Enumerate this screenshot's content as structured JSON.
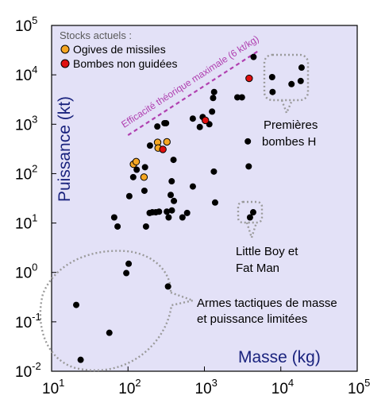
{
  "chart_data": {
    "type": "scatter",
    "xlabel": "Masse (kg)",
    "ylabel": "Puissance (kt)",
    "x_scale": "log",
    "y_scale": "log",
    "xlim": [
      10,
      100000
    ],
    "ylim": [
      0.01,
      100000
    ],
    "x_ticks": [
      {
        "value": 10,
        "base": "10",
        "exp": "1"
      },
      {
        "value": 100,
        "base": "10",
        "exp": "2"
      },
      {
        "value": 1000,
        "base": "10",
        "exp": "3"
      },
      {
        "value": 10000,
        "base": "10",
        "exp": "4"
      },
      {
        "value": 100000,
        "base": "10",
        "exp": "5"
      }
    ],
    "y_ticks": [
      {
        "value": 0.01,
        "base": "10",
        "exp": "-2"
      },
      {
        "value": 0.1,
        "base": "10",
        "exp": "-1"
      },
      {
        "value": 1,
        "base": "10",
        "exp": "0"
      },
      {
        "value": 10,
        "base": "10",
        "exp": "1"
      },
      {
        "value": 100,
        "base": "10",
        "exp": "2"
      },
      {
        "value": 1000,
        "base": "10",
        "exp": "3"
      },
      {
        "value": 10000,
        "base": "10",
        "exp": "4"
      },
      {
        "value": 100000,
        "base": "10",
        "exp": "5"
      }
    ],
    "grid": false,
    "background": "#e3e1f7",
    "legend": {
      "title": "Stocks actuels :",
      "placement": "top-left",
      "entries": [
        {
          "label": "Ogives de missiles",
          "color": "#f5a623"
        },
        {
          "label": "Bombes non guidées",
          "color": "#e01010"
        }
      ]
    },
    "limit_line": {
      "label": "Efficacité théorique maximale (6 kt/kg)",
      "color": "#b040b0",
      "kt_per_kg": 6,
      "x_range": [
        100,
        5200
      ]
    },
    "series": [
      {
        "color": "#000000",
        "points": [
          [
            21,
            0.22
          ],
          [
            24,
            0.017
          ],
          [
            57,
            0.06
          ],
          [
            95,
            0.97
          ],
          [
            102,
            1.5
          ],
          [
            334,
            0.52
          ],
          [
            66,
            13
          ],
          [
            73,
            8.5
          ],
          [
            104,
            35
          ],
          [
            117,
            85
          ],
          [
            130,
            120
          ],
          [
            164,
            45
          ],
          [
            172,
            8.5
          ],
          [
            192,
            16
          ],
          [
            208,
            16.5
          ],
          [
            231,
            16.5
          ],
          [
            255,
            17
          ],
          [
            322,
            17
          ],
          [
            340,
            13
          ],
          [
            362,
            37
          ],
          [
            375,
            18
          ],
          [
            399,
            28
          ],
          [
            516,
            13
          ],
          [
            594,
            16
          ],
          [
            706,
            55
          ],
          [
            1380,
            26
          ],
          [
            1330,
            110
          ],
          [
            3800,
            140
          ],
          [
            3950,
            13
          ],
          [
            4350,
            16.5
          ],
          [
            167,
            135
          ],
          [
            194,
            370
          ],
          [
            373,
            70
          ],
          [
            394,
            190
          ],
          [
            242,
            900
          ],
          [
            300,
            1050
          ],
          [
            315,
            1050
          ],
          [
            705,
            1300
          ],
          [
            870,
            880
          ],
          [
            950,
            1400
          ],
          [
            1260,
            1800
          ],
          [
            1300,
            3400
          ],
          [
            1340,
            4500
          ],
          [
            1160,
            1000
          ],
          [
            2700,
            3500
          ],
          [
            3100,
            3500
          ],
          [
            3700,
            450
          ],
          [
            4400,
            23000
          ],
          [
            7700,
            9000
          ],
          [
            7800,
            4500
          ],
          [
            13800,
            6500
          ],
          [
            18200,
            7500
          ],
          [
            18700,
            14000
          ]
        ]
      },
      {
        "name": "Ogives de missiles",
        "color": "#f5a623",
        "points": [
          [
            118,
            155
          ],
          [
            128,
            175
          ],
          [
            162,
            85
          ],
          [
            244,
            430
          ],
          [
            248,
            330
          ],
          [
            323,
            440
          ]
        ]
      },
      {
        "name": "Bombes non guidées",
        "color": "#e01010",
        "points": [
          [
            286,
            310
          ],
          [
            1030,
            1200
          ],
          [
            3850,
            8500
          ]
        ]
      }
    ],
    "annotations": [
      {
        "text": [
          "Premières",
          "bombes H"
        ]
      },
      {
        "text": [
          "Little Boy et",
          "Fat Man"
        ]
      },
      {
        "text": [
          "Armes tactiques de masse",
          "et puissance limitées"
        ]
      }
    ]
  }
}
